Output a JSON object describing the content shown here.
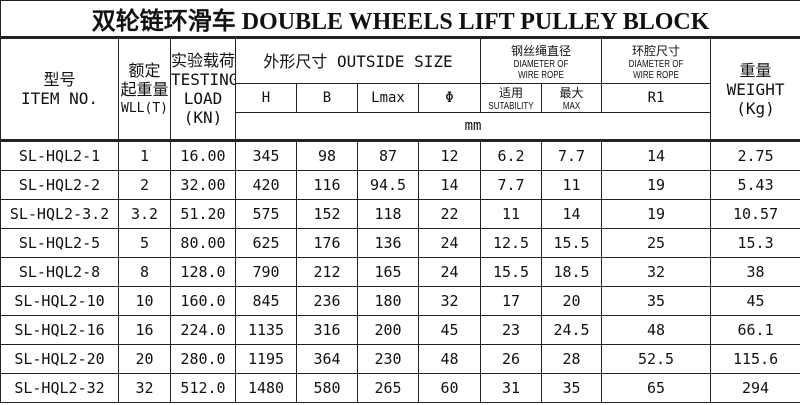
{
  "title": "双轮链环滑车   DOUBLE  WHEELS LIFT PULLEY BLOCK",
  "headers": {
    "item_cn": "型号",
    "item_en": "ITEM NO.",
    "wll_cn1": "额定",
    "wll_cn2": "起重量",
    "wll_en": "WLL(T)",
    "load_cn": "实验载荷",
    "load_en1": "TESTING",
    "load_en2": "LOAD",
    "load_en3": "(KN)",
    "outside": "外形尺寸 OUTSIDE SIZE",
    "rope_cn": "钢丝绳直径",
    "rope_en1": "DIAMETER OF",
    "rope_en2": "WIRE ROPE",
    "cavity_cn": "环腔尺寸",
    "cavity_en1": "DIAMETER OF",
    "cavity_en2": "WIRE ROPE",
    "weight_cn": "重量",
    "weight_en1": "WEIGHT",
    "weight_en2": "(Kg)",
    "H": "H",
    "B": "B",
    "Lmax": "Lmax",
    "phi": "Φ",
    "suit_cn": "适用",
    "suit_en": "SUTABILITY",
    "max_cn": "最大",
    "max_en": "MAX",
    "R1": "R1",
    "unit": "mm"
  },
  "rows": [
    [
      "SL-HQL2-1",
      "1",
      "16.00",
      "345",
      "98",
      "87",
      "12",
      "6.2",
      "7.7",
      "14",
      "2.75"
    ],
    [
      "SL-HQL2-2",
      "2",
      "32.00",
      "420",
      "116",
      "94.5",
      "14",
      "7.7",
      "11",
      "19",
      "5.43"
    ],
    [
      "SL-HQL2-3.2",
      "3.2",
      "51.20",
      "575",
      "152",
      "118",
      "22",
      "11",
      "14",
      "19",
      "10.57"
    ],
    [
      "SL-HQL2-5",
      "5",
      "80.00",
      "625",
      "176",
      "136",
      "24",
      "12.5",
      "15.5",
      "25",
      "15.3"
    ],
    [
      "SL-HQL2-8",
      "8",
      "128.0",
      "790",
      "212",
      "165",
      "24",
      "15.5",
      "18.5",
      "32",
      "38"
    ],
    [
      "SL-HQL2-10",
      "10",
      "160.0",
      "845",
      "236",
      "180",
      "32",
      "17",
      "20",
      "35",
      "45"
    ],
    [
      "SL-HQL2-16",
      "16",
      "224.0",
      "1135",
      "316",
      "200",
      "45",
      "23",
      "24.5",
      "48",
      "66.1"
    ],
    [
      "SL-HQL2-20",
      "20",
      "280.0",
      "1195",
      "364",
      "230",
      "48",
      "26",
      "28",
      "52.5",
      "115.6"
    ],
    [
      "SL-HQL2-32",
      "32",
      "512.0",
      "1480",
      "580",
      "265",
      "60",
      "31",
      "35",
      "65",
      "294"
    ]
  ]
}
